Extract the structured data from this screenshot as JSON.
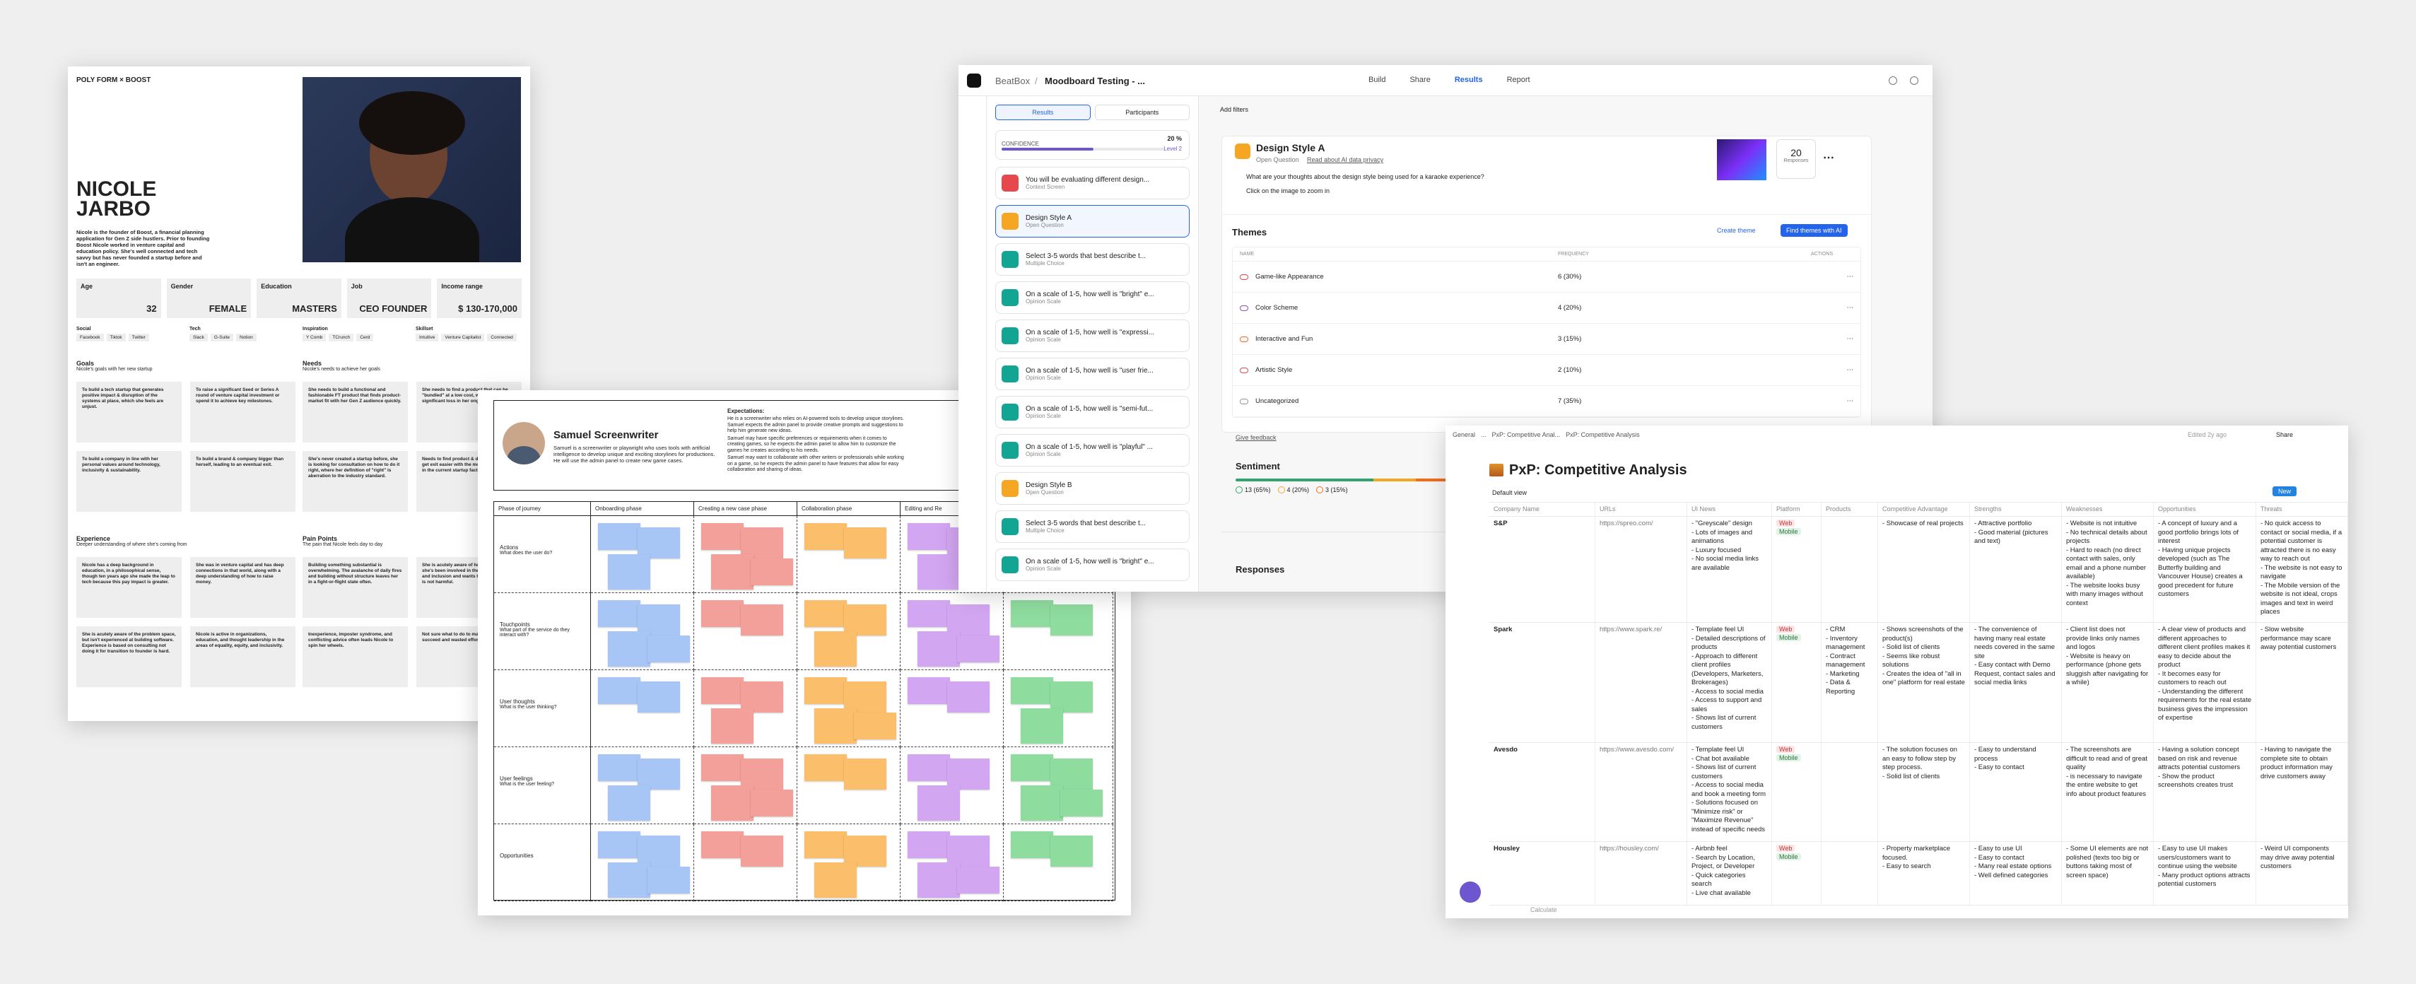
{
  "persona": {
    "brand": "POLY FORM × BOOST",
    "name": "NICOLE JARBO",
    "bio": "Nicole is the founder of Boost, a financial planning application for Gen Z side hustlers. Prior to founding Boost Nicole worked in venture capital and education policy. She's well connected and tech savvy but has never founded a startup before and isn't an engineer.",
    "fields": [
      {
        "label": "Age",
        "value": "32"
      },
      {
        "label": "Gender",
        "value": "FEMALE"
      },
      {
        "label": "Education",
        "value": "MASTERS"
      },
      {
        "label": "Job",
        "value": "CEO FOUNDER"
      },
      {
        "label": "Income range",
        "value": "$ 130-170,000"
      }
    ],
    "tag_groups": [
      {
        "label": "Social",
        "tags": [
          "Facebook",
          "Tiktok",
          "Twitter"
        ]
      },
      {
        "label": "Tech",
        "tags": [
          "Slack",
          "G-Suite",
          "Notion"
        ]
      },
      {
        "label": "Inspiration",
        "tags": [
          "Y Comb",
          "TCrunch",
          "Cerd"
        ]
      },
      {
        "label": "Skillset",
        "tags": [
          "Intuitive",
          "Venture Capitalist",
          "Connected"
        ]
      }
    ],
    "sections": [
      {
        "title": "Goals",
        "subtitle": "Nicole's goals with her new startup",
        "items": [
          "To build a tech startup that generates positive impact & disruption of the systems at place, which she feels are unjust.",
          "To raise a significant Seed or Series A round of venture capital investment or spend it to achieve key milestones.",
          "To build a company in line with her personal values around technology, inclusivity & sustainability.",
          "To build a brand & company bigger than herself, leading to an eventual exit."
        ]
      },
      {
        "title": "Needs",
        "subtitle": "Nicole's needs to achieve her goals",
        "items": [
          "She needs to build a functional and fashionable FT product that finds product-market fit with her Gen Z audience quickly.",
          "She needs to find a product that can be \"bundled\" at a low cost, without significant loss in her ongoing value.",
          "She's never created a startup before, she is looking for consultation on how to do it right, where her definition of \"right\" is aberration to the industry standard.",
          "Needs to find product & design partner to get exit easier with the movement success in the current startup factors."
        ]
      },
      {
        "title": "Experience",
        "subtitle": "Deeper understanding of where she's coming from",
        "items": [
          "Nicole has a deep background in education, in a philosophical sense, though ten years ago she made the leap to tech because this pay impact is greater.",
          "She was in venture capital and has deep connections in that world, along with a deep understanding of how to raise money.",
          "She is acutely aware of the problem space, but isn't experienced at building software. Experience is based on consulting not doing it for transition to founder is hard.",
          "Nicole is active in organizations, education, and thought leadership in the areas of equality, equity, and inclusivity."
        ]
      },
      {
        "title": "Pain Points",
        "subtitle": "The pain that Nicole feels day to day",
        "items": [
          "Building something substantial is overwhelming. The avalanche of daily fires and building without structure leaves her in a fight-or-flight state often.",
          "She is acutely aware of her privilege and she's been involved in the wars of equity and inclusion and wants to build tech that is not harmful.",
          "Inexperience, imposter syndrome, and conflicting advice often leads Nicole to spin her wheels.",
          "Not sure what to do to make her startup succeed and wasted effort."
        ]
      }
    ]
  },
  "journey": {
    "persona": "Samuel Screenwriter",
    "description": "Samuel is a screenwriter or playwright who uses tools with artificial intelligence to develop unique and exciting storylines for productions. He will use the admin panel to create new game cases.",
    "expectations_title": "Expectations:",
    "expectations": [
      "He is a screenwriter who relies on AI-powered tools to develop unique storylines. Samuel expects the admin panel to provide creative prompts and suggestions to help him generate new ideas.",
      "Samuel may have specific preferences or requirements when it comes to creating games, so he expects the admin panel to allow him to customize the games he creates according to his needs.",
      "Samuel may want to collaborate with other writers or professionals while working on a game, so he expects the admin panel to have features that allow for easy collaboration and sharing of ideas."
    ],
    "phases": [
      "Phase of journey",
      "Onboarding phase",
      "Creating a new case phase",
      "Collaboration phase",
      "Editing and Re"
    ],
    "rows": [
      {
        "title": "Actions",
        "sub": "What does the user do?"
      },
      {
        "title": "Touchpoints",
        "sub": "What part of the service do they interact with?"
      },
      {
        "title": "User thoughts",
        "sub": "What is the user thinking?"
      },
      {
        "title": "User feelings",
        "sub": "What is the user feeling?"
      },
      {
        "title": "Opportunities",
        "sub": ""
      }
    ]
  },
  "beatbox": {
    "crumb": "BeatBox",
    "project": "Moodboard Testing - ...",
    "nav": [
      "Build",
      "Share",
      "Results",
      "Report"
    ],
    "tabs": [
      "Results",
      "Participants"
    ],
    "confidence": "CONFIDENCE",
    "confidence_value": "20 %",
    "level": "Level 2",
    "questions": [
      {
        "title": "You will be evaluating different design...",
        "type": "Context Screen"
      },
      {
        "title": "Design Style A",
        "type": "Open Question"
      },
      {
        "title": "Select 3-5 words that best describe t...",
        "type": "Multiple Choice"
      },
      {
        "title": "On a scale of 1-5, how well is \"bright\" e...",
        "type": "Opinion Scale"
      },
      {
        "title": "On a scale of 1-5, how well is \"expressi...",
        "type": "Opinion Scale"
      },
      {
        "title": "On a scale of 1-5, how well is \"user frie...",
        "type": "Opinion Scale"
      },
      {
        "title": "On a scale of 1-5, how well is \"semi-fut...",
        "type": "Opinion Scale"
      },
      {
        "title": "On a scale of 1-5, how well is \"playful\" ...",
        "type": "Opinion Scale"
      },
      {
        "title": "Design Style B",
        "type": "Open Question"
      },
      {
        "title": "Select 3-5 words that best describe t...",
        "type": "Multiple Choice"
      },
      {
        "title": "On a scale of 1-5, how well is \"bright\" e...",
        "type": "Opinion Scale"
      }
    ],
    "filters": "Add filters",
    "heading": "Design Style A",
    "heading_type": "Open Question",
    "privacy": "Read about AI data privacy",
    "question": "What are your thoughts about the design style being used for a karaoke experience?",
    "hint": "Click on the image to zoom in",
    "responses_count": "20",
    "responses_label": "Responses",
    "themes_title": "Themes",
    "create_theme": "Create theme",
    "find_themes": "Find themes with AI",
    "columns": [
      "NAME",
      "FREQUENCY",
      "ACTIONS"
    ],
    "themes": [
      {
        "name": "Game-like Appearance",
        "freq": "6 (30%)",
        "color": "#e5484d"
      },
      {
        "name": "Color Scheme",
        "freq": "4 (20%)",
        "color": "#8e4ec6"
      },
      {
        "name": "Interactive and Fun",
        "freq": "3 (15%)",
        "color": "#f76b15"
      },
      {
        "name": "Artistic Style",
        "freq": "2 (10%)",
        "color": "#e5484d"
      },
      {
        "name": "Uncategorized",
        "freq": "7 (35%)",
        "color": "#999"
      }
    ],
    "feedback": "Give feedback",
    "sentiment_title": "Sentiment",
    "sentiment": [
      {
        "label": "13 (65%)",
        "color": "#30a46c"
      },
      {
        "label": "4 (20%)",
        "color": "#f5a623"
      },
      {
        "label": "3 (15%)",
        "color": "#f76b15"
      }
    ],
    "responses_title": "Responses"
  },
  "notion": {
    "crumbs": [
      "General",
      "...",
      "PxP: Competitive Anal...",
      "PxP: Competitive Analysis"
    ],
    "edited": "Edited 2y ago",
    "share": "Share",
    "title": "PxP: Competitive Analysis",
    "view": "Default view",
    "new": "New",
    "columns": [
      "Company Name",
      "URLs",
      "UI News",
      "Platform",
      "Products",
      "Competitive Advantage",
      "Strengths",
      "Weaknesses",
      "Opportunities",
      "Threats"
    ],
    "rows": [
      {
        "name": "S&P",
        "url": "https://spreo.com/",
        "news": "- \"Greyscale\" design\n- Lots of images and animations\n- Luxury focused\n- No social media links are available",
        "platform": [
          "Web",
          "Mobile"
        ],
        "products": "",
        "advantage": "- Showcase of real projects",
        "strengths": "- Attractive portfolio\n- Good material (pictures and text)",
        "weaknesses": "- Website is not intuitive\n- No technical details about projects\n- Hard to reach (no direct contact with sales, only email and a phone number available)\n- The website looks busy with many images without context",
        "opportunities": "- A concept of luxury and a good portfolio brings lots of interest\n- Having unique projects developed (such as The Butterfly building and Vancouver House) creates a good precedent for future customers",
        "threats": "- No quick access to contact or social media, if a potential customer is attracted there is no easy way to reach out\n- The website is not easy to navigate\n- The Mobile version of the website is not ideal, crops images and text in weird places"
      },
      {
        "name": "Spark",
        "url": "https://www.spark.re/",
        "news": "- Template feel UI\n- Detailed descriptions of products\n- Approach to different client profiles (Developers, Marketers, Brokerages)\n- Access to social media\n- Access to support and sales\n- Shows list of current customers",
        "platform": [
          "Web",
          "Mobile"
        ],
        "products": "- CRM\n- Inventory management\n- Contract management\n- Marketing\n- Data & Reporting",
        "advantage": "- Shows screenshots of the product(s)\n- Solid list of clients\n- Seems like robust solutions\n- Creates the idea of \"all in one\" platform for real estate",
        "strengths": "- The convenience of having many real estate needs covered in the same site\n- Easy contact with Demo Request, contact sales and social media links",
        "weaknesses": "- Client list does not provide links only names and logos\n- Website is heavy on performance (phone gets sluggish after navigating for a while)",
        "opportunities": "- A clear view of products and different approaches to different client profiles makes it easy to decide about the product\n- It becomes easy for customers to reach out\n- Understanding the different requirements for the real estate business gives the impression of expertise",
        "threats": "- Slow website performance may scare away potential customers"
      },
      {
        "name": "Avesdo",
        "url": "https://www.avesdo.com/",
        "news": "- Template feel UI\n- Chat bot available\n- Shows list of current customers\n- Access to social media and book a meeting form\n- Solutions focused on \"Minimize risk\" or \"Maximize Revenue\" instead of specific needs",
        "platform": [
          "Web",
          "Mobile"
        ],
        "products": "",
        "advantage": "- The solution focuses on an easy to follow step by step process.\n- Solid list of clients",
        "strengths": "- Easy to understand process\n- Easy to contact",
        "weaknesses": "- The screenshots are difficult to read and of great quality\n- is necessary to navigate the entire website to get info about product features",
        "opportunities": "- Having a solution concept based on risk and revenue attracts potential customers\n- Show the product screenshots creates trust",
        "threats": "- Having to navigate the complete site to obtain product information may drive customers away"
      },
      {
        "name": "Housley",
        "url": "https://housley.com/",
        "news": "- Airbnb feel\n- Search by Location, Project, or Developer\n- Quick categories search\n- Live chat available",
        "platform": [
          "Web",
          "Mobile"
        ],
        "products": "",
        "advantage": "- Property marketplace focused.\n- Easy to search",
        "strengths": "- Easy to use UI\n- Easy to contact\n- Many real estate options\n- Well defined categories",
        "weaknesses": "- Some UI elements are not polished (texts too big or buttons taking most of screen space)",
        "opportunities": "- Easy to use UI makes users/customers want to continue using the website\n- Many product options attracts potential customers",
        "threats": "- Weird UI components may drive away potential customers"
      }
    ],
    "calculate": "Calculate"
  }
}
